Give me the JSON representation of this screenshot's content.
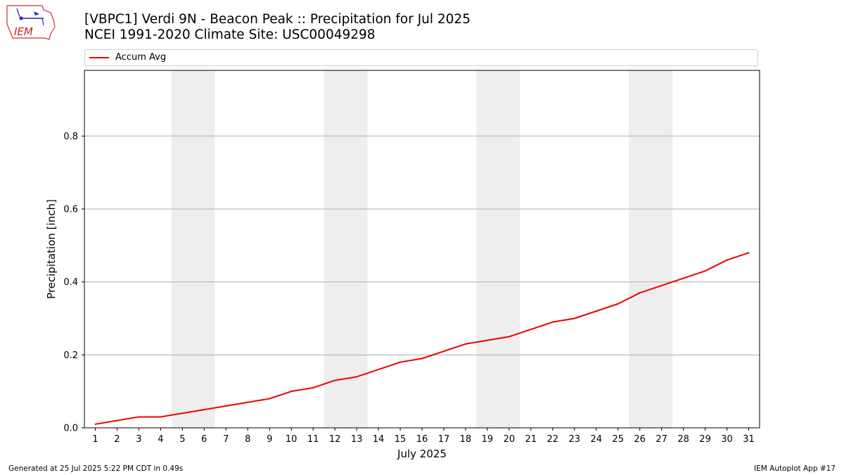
{
  "header": {
    "title_line1": "[VBPC1] Verdi 9N - Beacon Peak :: Precipitation for Jul 2025",
    "title_line2": "NCEI 1991-2020 Climate Site: USC00049298"
  },
  "logo": {
    "text": "IEM",
    "icon": "iem-iowa-weather-logo-icon"
  },
  "footer": {
    "generated": "Generated at 25 Jul 2025 5:22 PM CDT in 0.49s",
    "app": "IEM Autoplot App #17"
  },
  "colors": {
    "series": "#ee0000",
    "weekend_band": "#eeeeee",
    "grid": "#b0b0b0"
  },
  "chart_data": {
    "type": "line",
    "xlabel": "July 2025",
    "ylabel": "Precipitation [inch]",
    "xlim": [
      0.5,
      31.5
    ],
    "ylim": [
      0,
      0.98
    ],
    "y_ticks": [
      0.0,
      0.2,
      0.4,
      0.6,
      0.8
    ],
    "y_tick_labels": [
      "0.0",
      "0.2",
      "0.4",
      "0.6",
      "0.8"
    ],
    "grid": "horizontal",
    "legend_position": "top",
    "weekend_bands": [
      [
        4.5,
        6.5
      ],
      [
        11.5,
        13.5
      ],
      [
        18.5,
        20.5
      ],
      [
        25.5,
        27.5
      ]
    ],
    "x": [
      1,
      2,
      3,
      4,
      5,
      6,
      7,
      8,
      9,
      10,
      11,
      12,
      13,
      14,
      15,
      16,
      17,
      18,
      19,
      20,
      21,
      22,
      23,
      24,
      25,
      26,
      27,
      28,
      29,
      30,
      31
    ],
    "x_tick_labels": [
      "1",
      "2",
      "3",
      "4",
      "5",
      "6",
      "7",
      "8",
      "9",
      "10",
      "11",
      "12",
      "13",
      "14",
      "15",
      "16",
      "17",
      "18",
      "19",
      "20",
      "21",
      "22",
      "23",
      "24",
      "25",
      "26",
      "27",
      "28",
      "29",
      "30",
      "31"
    ],
    "series": [
      {
        "name": "Accum Avg",
        "values": [
          0.01,
          0.02,
          0.03,
          0.03,
          0.04,
          0.05,
          0.06,
          0.07,
          0.08,
          0.1,
          0.11,
          0.13,
          0.14,
          0.16,
          0.18,
          0.19,
          0.21,
          0.23,
          0.24,
          0.25,
          0.27,
          0.29,
          0.3,
          0.32,
          0.34,
          0.37,
          0.39,
          0.41,
          0.43,
          0.46,
          0.48
        ]
      }
    ]
  }
}
